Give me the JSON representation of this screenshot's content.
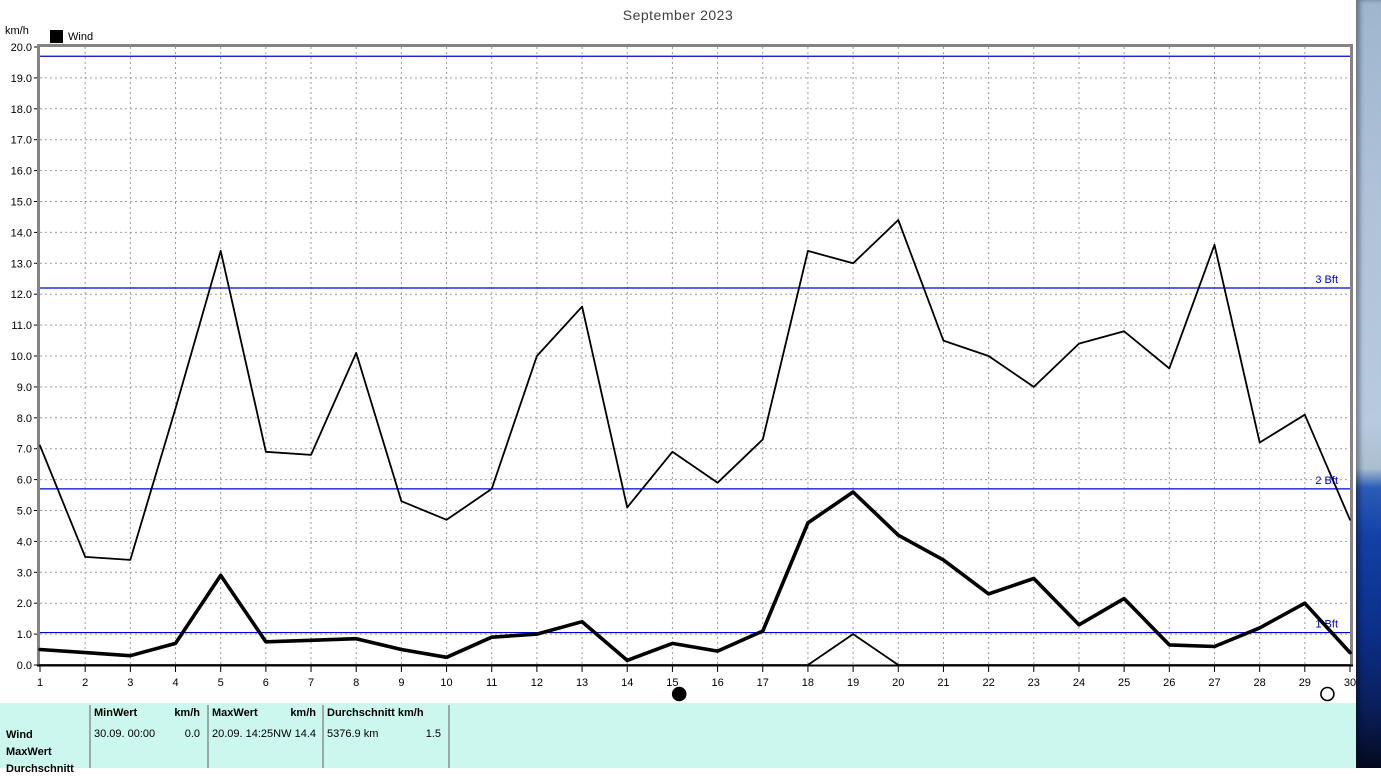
{
  "title": "September 2023",
  "y_axis_unit": "km/h",
  "legend": {
    "label": "Wind",
    "swatch_color": "#000000"
  },
  "colors": {
    "series": "#000000",
    "beaufort_line": "#0000d0",
    "grid": "#9c9c9c",
    "plot_border": "#848484",
    "table_bg": "#ccf7ef",
    "table_separator": "#9aa8a8"
  },
  "chart_data": {
    "type": "line",
    "title": "September 2023",
    "xlabel": "",
    "ylabel": "km/h",
    "ylim": [
      0,
      20
    ],
    "y_tick_step": 1.0,
    "grid": true,
    "legend_position": "top-left",
    "x": [
      1,
      2,
      3,
      4,
      5,
      6,
      7,
      8,
      9,
      10,
      11,
      12,
      13,
      14,
      15,
      16,
      17,
      18,
      19,
      20,
      21,
      22,
      23,
      24,
      25,
      26,
      27,
      28,
      29,
      30
    ],
    "series": [
      {
        "name": "MaxWert",
        "style": "thin",
        "values": [
          7.1,
          3.5,
          3.4,
          8.3,
          13.4,
          6.9,
          6.8,
          10.1,
          5.3,
          4.7,
          5.7,
          10.0,
          11.6,
          5.1,
          6.9,
          5.9,
          7.3,
          13.4,
          13.0,
          14.4,
          10.5,
          10.0,
          9.0,
          10.4,
          10.8,
          9.6,
          13.6,
          7.2,
          8.1,
          4.7
        ]
      },
      {
        "name": "Wind",
        "style": "thick",
        "values": [
          0.5,
          0.4,
          0.3,
          0.7,
          2.9,
          0.75,
          0.8,
          0.85,
          0.5,
          0.25,
          0.9,
          1.0,
          1.4,
          0.15,
          0.7,
          0.45,
          1.1,
          4.6,
          5.6,
          4.2,
          3.4,
          2.3,
          2.8,
          1.3,
          2.15,
          0.65,
          0.6,
          1.2,
          2.0,
          0.4
        ]
      },
      {
        "name": "MinWert",
        "style": "thin",
        "values": [
          0,
          0,
          0,
          0,
          0,
          0,
          0,
          0,
          0,
          0,
          0,
          0,
          0,
          0,
          0,
          0,
          0,
          0,
          1.0,
          0,
          0,
          0,
          0,
          0,
          0,
          0,
          0,
          0,
          0,
          0
        ]
      }
    ],
    "threshold_lines": [
      {
        "label": "",
        "value": 19.7
      },
      {
        "label": "3 Bft",
        "value": 12.2
      },
      {
        "label": "2 Bft",
        "value": 5.7
      },
      {
        "label": "1 Bft",
        "value": 1.05
      }
    ],
    "moon_phases": [
      {
        "day": 15.15,
        "type": "new-moon"
      },
      {
        "day": 29.5,
        "type": "full-moon"
      }
    ]
  },
  "summary_table": {
    "row_labels": [
      "Wind",
      "MaxWert",
      "Durchschnitt"
    ],
    "columns": [
      {
        "header_left": "MinWert",
        "header_right": "km/h",
        "value_left": "30.09.  00:00",
        "value_right": "0.0"
      },
      {
        "header_left": "MaxWert",
        "header_right": "km/h",
        "value_left": "20.09.  14:25NW",
        "value_right": "14.4"
      },
      {
        "header_left": "Durchschnitt km/h",
        "header_right": "",
        "value_left": "5376.9 km",
        "value_right": "1.5"
      }
    ]
  }
}
